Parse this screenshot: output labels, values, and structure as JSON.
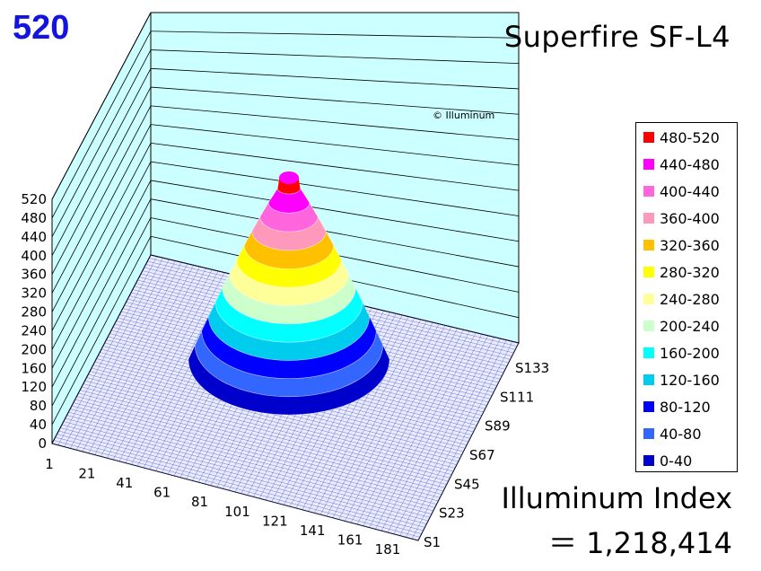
{
  "header": {
    "peak_value": "520",
    "title": "Superfire SF-L4"
  },
  "footer": {
    "index_label": "Illuminum Index",
    "index_value": "＝ 1,218,414"
  },
  "watermark": "© Illuminum",
  "chart_data": {
    "type": "surface-3d",
    "title": "Superfire SF-L4",
    "z_ticks": [
      "0",
      "40",
      "80",
      "120",
      "160",
      "200",
      "240",
      "280",
      "320",
      "360",
      "400",
      "440",
      "480",
      "520"
    ],
    "zlim": [
      0,
      520
    ],
    "x_ticks": [
      "1",
      "21",
      "41",
      "61",
      "81",
      "101",
      "121",
      "141",
      "161",
      "181"
    ],
    "y_ticks": [
      "S1",
      "S23",
      "S45",
      "S67",
      "S89",
      "S111",
      "S133"
    ],
    "peak": 520,
    "bands": [
      {
        "range": "480-520",
        "color": "#ff0000"
      },
      {
        "range": "440-480",
        "color": "#ff00ff"
      },
      {
        "range": "400-440",
        "color": "#ff66dd"
      },
      {
        "range": "360-400",
        "color": "#ff99bb"
      },
      {
        "range": "320-360",
        "color": "#ffc000"
      },
      {
        "range": "280-320",
        "color": "#ffff00"
      },
      {
        "range": "240-280",
        "color": "#ffff99"
      },
      {
        "range": "200-240",
        "color": "#ccffcc"
      },
      {
        "range": "160-200",
        "color": "#00ffff"
      },
      {
        "range": "120-160",
        "color": "#00ccee"
      },
      {
        "range": "80-120",
        "color": "#0000ff"
      },
      {
        "range": "40-80",
        "color": "#3366ff"
      },
      {
        "range": "0-40",
        "color": "#0000cc"
      }
    ]
  },
  "colors": {
    "wall": "#ccffff",
    "floor_mesh": "#1a1aa8",
    "peak_text": "#1414e0"
  }
}
